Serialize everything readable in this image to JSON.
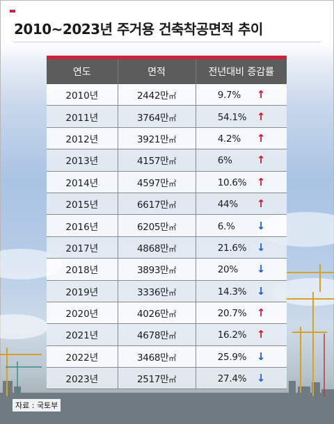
{
  "title": "2010~2023년 주거용 건축착공면적 추이",
  "columns": [
    "연도",
    "면적",
    "전년대비 증감률"
  ],
  "unit": "㎡",
  "rows": [
    {
      "year": "2010년",
      "area": "2442만",
      "change": "9.7%",
      "direction": "up"
    },
    {
      "year": "2011년",
      "area": "3764만",
      "change": "54.1%",
      "direction": "up"
    },
    {
      "year": "2012년",
      "area": "3921만",
      "change": "4.2%",
      "direction": "up"
    },
    {
      "year": "2013년",
      "area": "4157만",
      "change": "6%",
      "direction": "up"
    },
    {
      "year": "2014년",
      "area": "4597만",
      "change": "10.6%",
      "direction": "up"
    },
    {
      "year": "2015년",
      "area": "6617만",
      "change": "44%",
      "direction": "up"
    },
    {
      "year": "2016년",
      "area": "6205만",
      "change": "6.%",
      "direction": "down"
    },
    {
      "year": "2017년",
      "area": "4868만",
      "change": "21.6%",
      "direction": "down"
    },
    {
      "year": "2018년",
      "area": "3893만",
      "change": "20%",
      "direction": "down"
    },
    {
      "year": "2019년",
      "area": "3336만",
      "change": "14.3%",
      "direction": "down"
    },
    {
      "year": "2020년",
      "area": "4026만",
      "change": "20.7%",
      "direction": "up"
    },
    {
      "year": "2021년",
      "area": "4678만",
      "change": "16.2%",
      "direction": "up"
    },
    {
      "year": "2022년",
      "area": "3468만",
      "change": "25.9%",
      "direction": "down"
    },
    {
      "year": "2023년",
      "area": "2517만",
      "change": "27.4%",
      "direction": "down"
    }
  ],
  "arrows": {
    "up": "↑",
    "down": "↓"
  },
  "colors": {
    "accent_red": "#d61d3a",
    "up": "#d8112c",
    "down": "#1f5ad6",
    "header_bg": "#5c5c5c"
  },
  "source": "자료 : 국토부"
}
